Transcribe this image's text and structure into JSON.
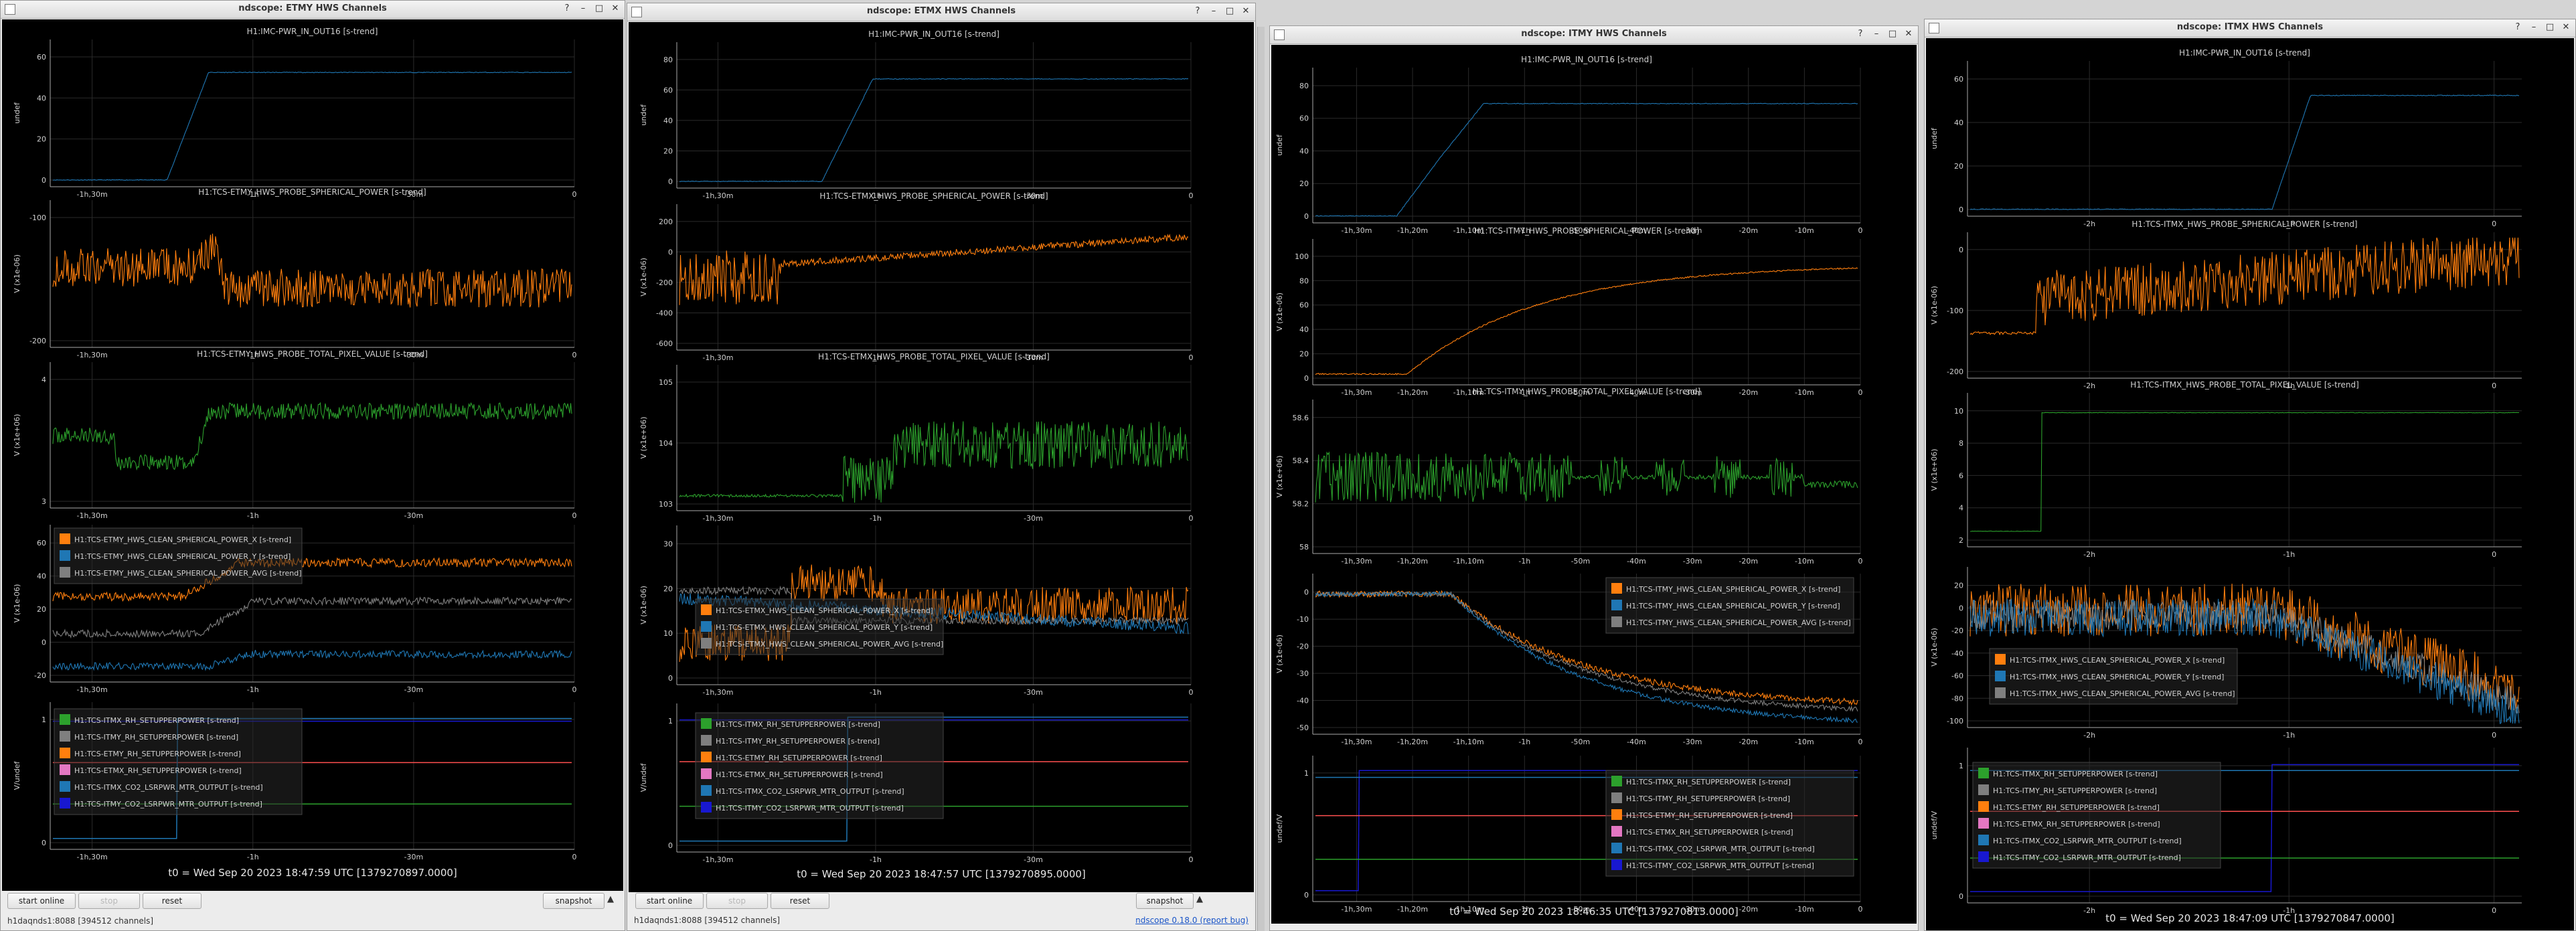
{
  "colors": {
    "blue": "#1f77b4",
    "orange": "#ff7f0e",
    "green": "#2ca02c",
    "gray": "#7f7f7f",
    "red": "#ff5050",
    "pink": "#e377c2",
    "navy": "#1818d0",
    "bg": "#000000",
    "fg": "#d0d0d0",
    "grid": "#2a2a2a"
  },
  "windows": [
    {
      "title": "ndscope: ETMY HWS Channels",
      "t0": "t0 = Wed Sep 20 2023 18:47:59 UTC [1379270897.0000]",
      "host": "h1daqnds1:8088  [394512 channels]",
      "version": "",
      "controls": {
        "start": "start online",
        "stop": "stop",
        "reset": "reset",
        "snapshot": "snapshot"
      },
      "plots": [
        {
          "title": "H1:IMC-PWR_IN_OUT16 [s-trend]",
          "ylabel": "undef",
          "yticks": [
            "0",
            "20",
            "40",
            "60"
          ],
          "xticks": [
            "-1h,30m",
            "-1h",
            "-30m",
            "0"
          ],
          "legend": []
        },
        {
          "title": "H1:TCS-ETMY_HWS_PROBE_SPHERICAL_POWER [s-trend]",
          "ylabel": "V (x1e-06)",
          "yticks": [
            "-200",
            "-100"
          ],
          "xticks": [
            "-1h,30m",
            "-1h",
            "-30m",
            "0"
          ],
          "legend": []
        },
        {
          "title": "H1:TCS-ETMY_HWS_PROBE_TOTAL_PIXEL_VALUE [s-trend]",
          "ylabel": "V (x1e+06)",
          "yticks": [
            "3",
            "4"
          ],
          "xticks": [
            "-1h,30m",
            "-1h",
            "-30m",
            "0"
          ],
          "legend": []
        },
        {
          "title": "",
          "ylabel": "V (x1e-06)",
          "yticks": [
            "-20",
            "0",
            "20",
            "40",
            "60"
          ],
          "xticks": [
            "-1h,30m",
            "-1h",
            "-30m",
            "0"
          ],
          "legend": [
            "H1:TCS-ETMY_HWS_CLEAN_SPHERICAL_POWER_X [s-trend]",
            "H1:TCS-ETMY_HWS_CLEAN_SPHERICAL_POWER_Y [s-trend]",
            "H1:TCS-ETMY_HWS_CLEAN_SPHERICAL_POWER_AVG [s-trend]"
          ]
        },
        {
          "title": "",
          "ylabel": "V/undef",
          "yticks": [
            "0",
            "1"
          ],
          "xticks": [
            "-1h,30m",
            "-1h",
            "-30m",
            "0"
          ],
          "legend": [
            "H1:TCS-ITMX_RH_SETUPPERPOWER [s-trend]",
            "H1:TCS-ITMY_RH_SETUPPERPOWER [s-trend]",
            "H1:TCS-ETMY_RH_SETUPPERPOWER [s-trend]",
            "H1:TCS-ETMX_RH_SETUPPERPOWER [s-trend]",
            "H1:TCS-ITMX_CO2_LSRPWR_MTR_OUTPUT [s-trend]",
            "H1:TCS-ITMY_CO2_LSRPWR_MTR_OUTPUT [s-trend]"
          ]
        }
      ]
    },
    {
      "title": "ndscope: ETMX HWS Channels",
      "t0": "t0 = Wed Sep 20 2023 18:47:57 UTC [1379270895.0000]",
      "host": "h1daqnds1:8088  [394512 channels]",
      "version": "ndscope 0.18.0 (report bug)",
      "controls": {
        "start": "start online",
        "stop": "stop",
        "reset": "reset",
        "snapshot": "snapshot"
      },
      "plots": [
        {
          "title": "H1:IMC-PWR_IN_OUT16 [s-trend]",
          "ylabel": "undef",
          "yticks": [
            "0",
            "20",
            "40",
            "60",
            "80"
          ],
          "xticks": [
            "-1h,30m",
            "-1h",
            "-30m",
            "0"
          ],
          "legend": []
        },
        {
          "title": "H1:TCS-ETMX_HWS_PROBE_SPHERICAL_POWER [s-trend]",
          "ylabel": "V (x1e-06)",
          "yticks": [
            "-600",
            "-400",
            "-200",
            "0",
            "200"
          ],
          "xticks": [
            "-1h,30m",
            "-1h",
            "-30m",
            "0"
          ],
          "legend": []
        },
        {
          "title": "H1:TCS-ETMX_HWS_PROBE_TOTAL_PIXEL_VALUE [s-trend]",
          "ylabel": "V (x1e+06)",
          "yticks": [
            "103",
            "104",
            "105"
          ],
          "xticks": [
            "-1h,30m",
            "-1h",
            "-30m",
            "0"
          ],
          "legend": []
        },
        {
          "title": "",
          "ylabel": "V (x1e-06)",
          "yticks": [
            "0",
            "10",
            "20",
            "30"
          ],
          "xticks": [
            "-1h,30m",
            "-1h",
            "-30m",
            "0"
          ],
          "legend": [
            "H1:TCS-ETMX_HWS_CLEAN_SPHERICAL_POWER_X [s-trend]",
            "H1:TCS-ETMX_HWS_CLEAN_SPHERICAL_POWER_Y [s-trend]",
            "H1:TCS-ETMX_HWS_CLEAN_SPHERICAL_POWER_AVG [s-trend]"
          ]
        },
        {
          "title": "",
          "ylabel": "V/undef",
          "yticks": [
            "0",
            "1"
          ],
          "xticks": [
            "-1h,30m",
            "-1h",
            "-30m",
            "0"
          ],
          "legend": [
            "H1:TCS-ITMX_RH_SETUPPERPOWER [s-trend]",
            "H1:TCS-ITMY_RH_SETUPPERPOWER [s-trend]",
            "H1:TCS-ETMY_RH_SETUPPERPOWER [s-trend]",
            "H1:TCS-ETMX_RH_SETUPPERPOWER [s-trend]",
            "H1:TCS-ITMX_CO2_LSRPWR_MTR_OUTPUT [s-trend]",
            "H1:TCS-ITMY_CO2_LSRPWR_MTR_OUTPUT [s-trend]"
          ]
        }
      ]
    },
    {
      "title": "ndscope: ITMY HWS Channels",
      "t0": "t0 = Wed Sep 20 2023 18:46:35 UTC [1379270813.0000]",
      "host": "",
      "version": "",
      "controls": null,
      "plots": [
        {
          "title": "H1:IMC-PWR_IN_OUT16 [s-trend]",
          "ylabel": "undef",
          "yticks": [
            "0",
            "20",
            "40",
            "60",
            "80"
          ],
          "xticks": [
            "-1h,30m",
            "-1h,20m",
            "-1h,10m",
            "-1h",
            "-50m",
            "-40m",
            "-30m",
            "-20m",
            "-10m",
            "0"
          ],
          "legend": []
        },
        {
          "title": "H1:TCS-ITMY_HWS_PROBE_SPHERICAL_POWER [s-trend]",
          "ylabel": "V (x1e-06)",
          "yticks": [
            "0",
            "20",
            "40",
            "60",
            "80",
            "100"
          ],
          "xticks": [
            "-1h,30m",
            "-1h,20m",
            "-1h,10m",
            "-1h",
            "-50m",
            "-40m",
            "-30m",
            "-20m",
            "-10m",
            "0"
          ],
          "legend": []
        },
        {
          "title": "H1:TCS-ITMY_HWS_PROBE_TOTAL_PIXEL_VALUE [s-trend]",
          "ylabel": "V (x1e+06)",
          "yticks": [
            "58",
            "58.2",
            "58.4",
            "58.6"
          ],
          "xticks": [
            "-1h,30m",
            "-1h,20m",
            "-1h,10m",
            "-1h",
            "-50m",
            "-40m",
            "-30m",
            "-20m",
            "-10m",
            "0"
          ],
          "legend": []
        },
        {
          "title": "",
          "ylabel": "V (x1e-06)",
          "yticks": [
            "-50",
            "-40",
            "-30",
            "-20",
            "-10",
            "0"
          ],
          "xticks": [
            "-1h,30m",
            "-1h,20m",
            "-1h,10m",
            "-1h",
            "-50m",
            "-40m",
            "-30m",
            "-20m",
            "-10m",
            "0"
          ],
          "legend": [
            "H1:TCS-ITMY_HWS_CLEAN_SPHERICAL_POWER_X [s-trend]",
            "H1:TCS-ITMY_HWS_CLEAN_SPHERICAL_POWER_Y [s-trend]",
            "H1:TCS-ITMY_HWS_CLEAN_SPHERICAL_POWER_AVG [s-trend]"
          ]
        },
        {
          "title": "",
          "ylabel": "undef/V",
          "yticks": [
            "0",
            "1"
          ],
          "xticks": [
            "-1h,30m",
            "-1h,20m",
            "-1h,10m",
            "-1h",
            "-50m",
            "-40m",
            "-30m",
            "-20m",
            "-10m",
            "0"
          ],
          "legend": [
            "H1:TCS-ITMX_RH_SETUPPERPOWER [s-trend]",
            "H1:TCS-ITMY_RH_SETUPPERPOWER [s-trend]",
            "H1:TCS-ETMY_RH_SETUPPERPOWER [s-trend]",
            "H1:TCS-ETMX_RH_SETUPPERPOWER [s-trend]",
            "H1:TCS-ITMX_CO2_LSRPWR_MTR_OUTPUT [s-trend]",
            "H1:TCS-ITMY_CO2_LSRPWR_MTR_OUTPUT [s-trend]"
          ]
        }
      ]
    },
    {
      "title": "ndscope: ITMX HWS Channels",
      "t0": "t0 = Wed Sep 20 2023 18:47:09 UTC [1379270847.0000]",
      "host": "",
      "version": "",
      "controls": null,
      "plots": [
        {
          "title": "H1:IMC-PWR_IN_OUT16 [s-trend]",
          "ylabel": "undef",
          "yticks": [
            "0",
            "20",
            "40",
            "60"
          ],
          "xticks": [
            "-2h",
            "-1h",
            "0"
          ],
          "legend": []
        },
        {
          "title": "H1:TCS-ITMX_HWS_PROBE_SPHERICAL_POWER [s-trend]",
          "ylabel": "V (x1e-06)",
          "yticks": [
            "-200",
            "-100",
            "0"
          ],
          "xticks": [
            "-2h",
            "-1h",
            "0"
          ],
          "legend": []
        },
        {
          "title": "H1:TCS-ITMX_HWS_PROBE_TOTAL_PIXEL_VALUE [s-trend]",
          "ylabel": "V (x1e+06)",
          "yticks": [
            "2",
            "4",
            "6",
            "8",
            "10"
          ],
          "xticks": [
            "-2h",
            "-1h",
            "0"
          ],
          "legend": []
        },
        {
          "title": "",
          "ylabel": "V (x1e-06)",
          "yticks": [
            "-100",
            "-80",
            "-60",
            "-40",
            "-20",
            "0",
            "20"
          ],
          "xticks": [
            "-2h",
            "-1h",
            "0"
          ],
          "legend": [
            "H1:TCS-ITMX_HWS_CLEAN_SPHERICAL_POWER_X [s-trend]",
            "H1:TCS-ITMX_HWS_CLEAN_SPHERICAL_POWER_Y [s-trend]",
            "H1:TCS-ITMX_HWS_CLEAN_SPHERICAL_POWER_AVG [s-trend]"
          ]
        },
        {
          "title": "",
          "ylabel": "undef/V",
          "yticks": [
            "0",
            "1"
          ],
          "xticks": [
            "-2h",
            "-1h",
            "0"
          ],
          "legend": [
            "H1:TCS-ITMX_RH_SETUPPERPOWER [s-trend]",
            "H1:TCS-ITMY_RH_SETUPPERPOWER [s-trend]",
            "H1:TCS-ETMY_RH_SETUPPERPOWER [s-trend]",
            "H1:TCS-ETMX_RH_SETUPPERPOWER [s-trend]",
            "H1:TCS-ITMX_CO2_LSRPWR_MTR_OUTPUT [s-trend]",
            "H1:TCS-ITMY_CO2_LSRPWR_MTR_OUTPUT [s-trend]"
          ]
        }
      ]
    }
  ]
}
